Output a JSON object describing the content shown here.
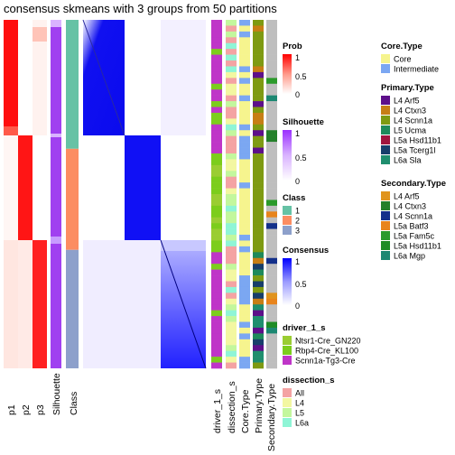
{
  "chart_data": {
    "type": "heatmap",
    "title": "consensus skmeans with 3 groups from 50 partitions",
    "annotation_columns": [
      "p1",
      "p2",
      "p3",
      "Silhouette",
      "Class"
    ],
    "sample_columns": [
      "driver_1_s",
      "dissection_s",
      "Core.Type",
      "Primary.Type",
      "Secondary.Type"
    ],
    "classes": [
      {
        "name": "1",
        "color": "#66C2A5",
        "fraction": 0.37
      },
      {
        "name": "2",
        "color": "#FC8D62",
        "fraction": 0.29
      },
      {
        "name": "3",
        "color": "#8DA0CB",
        "fraction": 0.34
      }
    ],
    "legends": {
      "prob": {
        "title": "Prob",
        "ticks": [
          "1",
          "0.5",
          "0"
        ],
        "color": "#ff0000"
      },
      "silhouette": {
        "title": "Silhouette",
        "ticks": [
          "1",
          "0.5",
          "0"
        ],
        "color": "#9b30ff"
      },
      "class": {
        "title": "Class",
        "items": [
          {
            "label": "1",
            "color": "#66C2A5"
          },
          {
            "label": "2",
            "color": "#FC8D62"
          },
          {
            "label": "3",
            "color": "#8DA0CB"
          }
        ]
      },
      "consensus": {
        "title": "Consensus",
        "ticks": [
          "1",
          "0.5",
          "0"
        ],
        "color": "#0000ff"
      },
      "driver": {
        "title": "driver_1_s",
        "items": [
          {
            "label": "Ntsr1-Cre_GN220",
            "color": "#9ACD32"
          },
          {
            "label": "Rbp4-Cre_KL100",
            "color": "#7CCD1C"
          },
          {
            "label": "Scnn1a-Tg3-Cre",
            "color": "#BF35C8"
          }
        ]
      },
      "dissection": {
        "title": "dissection_s",
        "items": [
          {
            "label": "All",
            "color": "#F4A3A3"
          },
          {
            "label": "L4",
            "color": "#F3F7A1"
          },
          {
            "label": "L5",
            "color": "#C3F79D"
          },
          {
            "label": "L6a",
            "color": "#8FF5D6"
          }
        ]
      },
      "core_type": {
        "title": "Core.Type",
        "items": [
          {
            "label": "Core",
            "color": "#F6F48E"
          },
          {
            "label": "Intermediate",
            "color": "#7BA7F2"
          }
        ]
      },
      "primary_type": {
        "title": "Primary.Type",
        "items": [
          {
            "label": "L4 Arf5",
            "color": "#5D0F8A"
          },
          {
            "label": "L4 Ctxn3",
            "color": "#C77E15"
          },
          {
            "label": "L4 Scnn1a",
            "color": "#7E9A12"
          },
          {
            "label": "L5 Ucma",
            "color": "#1E8A5B"
          },
          {
            "label": "L5a Hsd11b1",
            "color": "#A0153E"
          },
          {
            "label": "L5a Tcerg1l",
            "color": "#173E6B"
          },
          {
            "label": "L6a Sla",
            "color": "#1F8E6E"
          }
        ]
      },
      "secondary_type": {
        "title": "Secondary.Type",
        "items": [
          {
            "label": "L4 Arf5",
            "color": "#E0941E"
          },
          {
            "label": "L4 Ctxn3",
            "color": "#24802A"
          },
          {
            "label": "L4 Scnn1a",
            "color": "#13308A"
          },
          {
            "label": "L5a Batf3",
            "color": "#E8841C"
          },
          {
            "label": "L5a Fam5c",
            "color": "#2B9A2B"
          },
          {
            "label": "L5a Hsd11b1",
            "color": "#1E8C26"
          },
          {
            "label": "L6a Mgp",
            "color": "#1C8872"
          }
        ]
      }
    }
  }
}
